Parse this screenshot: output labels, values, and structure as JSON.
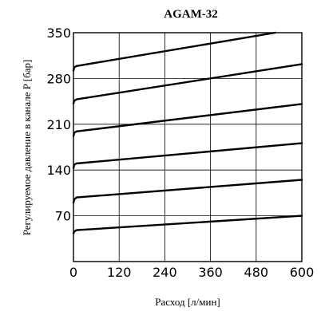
{
  "chart_data": {
    "type": "line",
    "title": "AGAM-32",
    "xlabel": "Расход [л/мин]",
    "ylabel": "Регулируемое давление в канале P [бар]",
    "xlim": [
      0,
      600
    ],
    "ylim": [
      0,
      350
    ],
    "x_ticks": [
      0,
      120,
      240,
      360,
      480,
      600
    ],
    "y_ticks": [
      70,
      140,
      210,
      280,
      350
    ],
    "x_tick_labels": [
      "0",
      "120",
      "240",
      "360",
      "480",
      "600"
    ],
    "y_tick_labels": [
      "70",
      "140",
      "210",
      "280",
      "350"
    ],
    "grid": true,
    "series": [
      {
        "x": [
          0,
          2,
          8,
          600
        ],
        "y": [
          43,
          46,
          48,
          70
        ]
      },
      {
        "x": [
          0,
          2,
          8,
          600
        ],
        "y": [
          90,
          95,
          98,
          125
        ]
      },
      {
        "x": [
          0,
          2,
          8,
          600
        ],
        "y": [
          143,
          148,
          150,
          181
        ]
      },
      {
        "x": [
          0,
          2,
          8,
          600
        ],
        "y": [
          192,
          197,
          199,
          241
        ]
      },
      {
        "x": [
          0,
          2,
          8,
          600
        ],
        "y": [
          242,
          246,
          248,
          302
        ]
      },
      {
        "x": [
          0,
          2,
          8,
          530
        ],
        "y": [
          292,
          297,
          299,
          350
        ]
      }
    ]
  }
}
